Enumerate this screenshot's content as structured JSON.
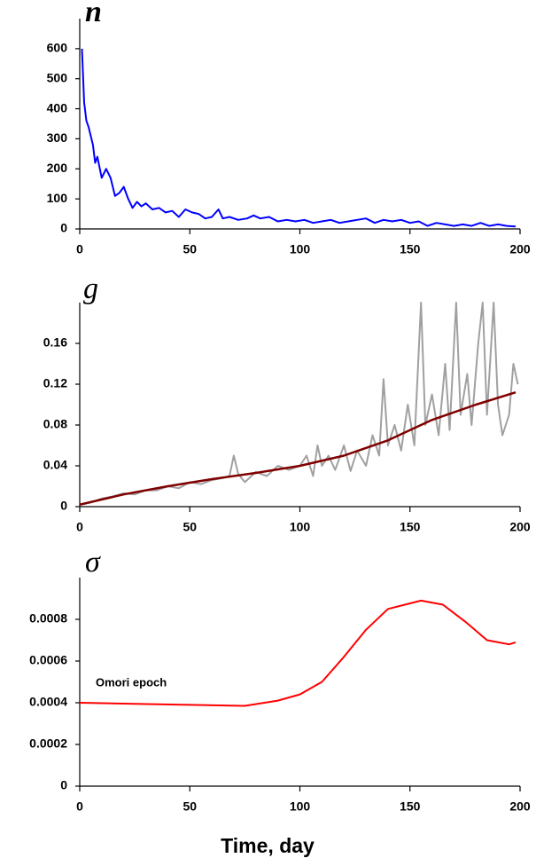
{
  "chart_data": [
    {
      "type": "line",
      "title": "n",
      "xlim": [
        0,
        200
      ],
      "xticks": [
        0,
        50,
        100,
        150,
        200
      ],
      "ylim": [
        0,
        700
      ],
      "yticks": [
        0,
        100,
        200,
        300,
        400,
        500,
        600
      ],
      "series": [
        {
          "color": "#0000ff",
          "x": [
            1,
            2,
            3,
            4,
            6,
            7,
            8,
            10,
            12,
            14,
            16,
            18,
            20,
            22,
            24,
            26,
            28,
            30,
            33,
            36,
            39,
            42,
            45,
            48,
            51,
            54,
            57,
            60,
            63,
            65,
            68,
            72,
            76,
            79,
            82,
            86,
            90,
            94,
            98,
            102,
            106,
            110,
            114,
            118,
            122,
            126,
            130,
            134,
            138,
            142,
            146,
            150,
            154,
            158,
            162,
            166,
            170,
            174,
            178,
            182,
            186,
            190,
            194,
            198
          ],
          "values": [
            600,
            420,
            360,
            340,
            280,
            220,
            240,
            170,
            200,
            170,
            110,
            120,
            140,
            100,
            70,
            90,
            75,
            85,
            65,
            70,
            55,
            60,
            40,
            65,
            55,
            50,
            35,
            40,
            65,
            35,
            40,
            30,
            35,
            45,
            35,
            40,
            25,
            30,
            25,
            30,
            20,
            25,
            30,
            20,
            25,
            30,
            35,
            20,
            30,
            25,
            30,
            20,
            25,
            10,
            20,
            15,
            10,
            15,
            10,
            20,
            10,
            15,
            10,
            8
          ]
        }
      ]
    },
    {
      "type": "line",
      "title": "g",
      "xlim": [
        0,
        200
      ],
      "xticks": [
        0,
        50,
        100,
        150,
        200
      ],
      "ylim": [
        0,
        0.2
      ],
      "yticks": [
        0,
        0.04,
        0.08,
        0.12,
        0.16
      ],
      "series": [
        {
          "color": "#a0a0a0",
          "x": [
            1,
            5,
            10,
            15,
            20,
            25,
            30,
            35,
            40,
            45,
            50,
            55,
            60,
            65,
            68,
            70,
            72,
            75,
            80,
            85,
            90,
            95,
            100,
            103,
            106,
            108,
            110,
            113,
            116,
            120,
            123,
            126,
            130,
            133,
            136,
            138,
            140,
            143,
            146,
            149,
            152,
            155,
            157,
            160,
            163,
            166,
            168,
            171,
            173,
            176,
            178,
            181,
            183,
            185,
            188,
            190,
            192,
            195,
            197,
            199
          ],
          "values": [
            0.002,
            0.004,
            0.008,
            0.01,
            0.013,
            0.012,
            0.016,
            0.016,
            0.02,
            0.018,
            0.024,
            0.022,
            0.026,
            0.028,
            0.03,
            0.05,
            0.032,
            0.024,
            0.034,
            0.03,
            0.04,
            0.036,
            0.04,
            0.05,
            0.03,
            0.06,
            0.04,
            0.05,
            0.036,
            0.06,
            0.035,
            0.055,
            0.04,
            0.07,
            0.05,
            0.125,
            0.06,
            0.08,
            0.055,
            0.1,
            0.06,
            0.2,
            0.08,
            0.11,
            0.07,
            0.14,
            0.075,
            0.2,
            0.09,
            0.13,
            0.08,
            0.16,
            0.2,
            0.09,
            0.2,
            0.1,
            0.07,
            0.09,
            0.14,
            0.12
          ]
        },
        {
          "color": "#800000",
          "x": [
            0,
            20,
            40,
            60,
            80,
            100,
            120,
            140,
            160,
            180,
            198
          ],
          "values": [
            0.002,
            0.012,
            0.02,
            0.027,
            0.033,
            0.04,
            0.05,
            0.065,
            0.085,
            0.1,
            0.112
          ]
        }
      ]
    },
    {
      "type": "line",
      "title": "σ",
      "annotation": "Omori epoch",
      "xlabel": "Time, day",
      "xlim": [
        0,
        200
      ],
      "xticks": [
        0,
        50,
        100,
        150,
        200
      ],
      "ylim": [
        0,
        0.001
      ],
      "yticks": [
        0,
        0.0002,
        0.0004,
        0.0006,
        0.0008
      ],
      "series": [
        {
          "color": "#ff0000",
          "x": [
            0,
            25,
            50,
            75,
            90,
            100,
            110,
            120,
            130,
            140,
            155,
            165,
            175,
            185,
            195,
            198
          ],
          "values": [
            0.0004,
            0.000395,
            0.00039,
            0.000385,
            0.00041,
            0.00044,
            0.0005,
            0.00062,
            0.00075,
            0.00085,
            0.00089,
            0.00087,
            0.00079,
            0.0007,
            0.00068,
            0.00069
          ]
        }
      ]
    }
  ]
}
